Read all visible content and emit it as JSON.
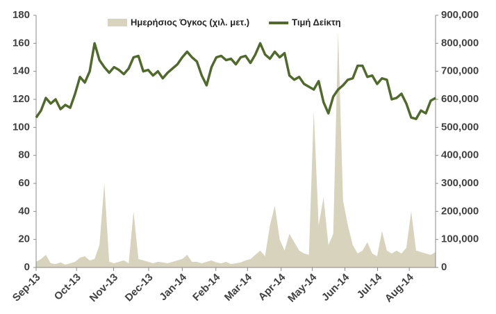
{
  "chart_data": {
    "type": "line-area",
    "x": [
      0,
      1,
      2,
      3,
      4,
      5,
      6,
      7,
      8,
      9,
      10,
      11,
      12,
      13,
      14,
      15,
      16,
      17,
      18,
      19,
      20,
      21,
      22,
      23,
      24,
      25,
      26,
      27,
      28,
      29,
      30,
      31,
      32,
      33,
      34,
      35,
      36,
      37,
      38,
      39,
      40,
      41,
      42,
      43,
      44,
      45,
      46,
      47,
      48,
      49,
      50,
      51,
      52,
      53,
      54,
      55,
      56,
      57,
      58,
      59,
      60,
      61,
      62,
      63,
      64,
      65,
      66,
      67,
      68,
      69,
      70,
      71,
      72,
      73,
      74,
      75,
      76,
      77,
      78,
      79,
      80,
      81,
      82
    ],
    "xlim": [
      0,
      82
    ],
    "xticks": [
      {
        "value": 0,
        "label": "Sep-13"
      },
      {
        "value": 8.3,
        "label": "Oct-13"
      },
      {
        "value": 15.9,
        "label": "Nov-13"
      },
      {
        "value": 23.1,
        "label": "Dec-13"
      },
      {
        "value": 30,
        "label": "Jan-14"
      },
      {
        "value": 36.9,
        "label": "Feb-14"
      },
      {
        "value": 43.4,
        "label": "Mar-14"
      },
      {
        "value": 50.3,
        "label": "Apr-14"
      },
      {
        "value": 56.7,
        "label": "May-14"
      },
      {
        "value": 63.4,
        "label": "Jun-14"
      },
      {
        "value": 70.1,
        "label": "Jul-14"
      },
      {
        "value": 76.6,
        "label": "Aug-14"
      }
    ],
    "ylim": [
      0,
      180
    ],
    "yticks": [
      0,
      20,
      40,
      60,
      80,
      100,
      120,
      140,
      160,
      180
    ],
    "y2lim": [
      0,
      900000
    ],
    "y2ticks": [
      0,
      {
        "value": 100000,
        "label": "100,000"
      },
      {
        "value": 200000,
        "label": "200,000"
      },
      {
        "value": 300000,
        "label": "300,000"
      },
      {
        "value": 400000,
        "label": "400,000"
      },
      {
        "value": 500000,
        "label": "500,000"
      },
      {
        "value": 600000,
        "label": "600,000"
      },
      {
        "value": 700000,
        "label": "700,000"
      },
      {
        "value": 800000,
        "label": "800,000"
      },
      {
        "value": 900000,
        "label": "900,000"
      }
    ],
    "legend": "top",
    "series": [
      {
        "name": "Ημερήσιος Όγκος (χιλ. μετ.)",
        "color": "#d8d3bd",
        "kind": "area",
        "axis": "y2",
        "values": [
          20000,
          30000,
          45000,
          15000,
          12000,
          18000,
          10000,
          15000,
          20000,
          35000,
          40000,
          25000,
          30000,
          80000,
          300000,
          20000,
          15000,
          20000,
          25000,
          15000,
          200000,
          30000,
          25000,
          20000,
          15000,
          20000,
          18000,
          15000,
          20000,
          25000,
          30000,
          45000,
          20000,
          20000,
          15000,
          20000,
          25000,
          18000,
          15000,
          20000,
          12000,
          15000,
          18000,
          25000,
          30000,
          45000,
          60000,
          40000,
          150000,
          220000,
          100000,
          60000,
          120000,
          90000,
          60000,
          50000,
          45000,
          560000,
          150000,
          250000,
          80000,
          120000,
          840000,
          240000,
          150000,
          80000,
          50000,
          60000,
          90000,
          50000,
          40000,
          130000,
          60000,
          50000,
          60000,
          50000,
          70000,
          200000,
          60000,
          55000,
          50000,
          45000,
          55000
        ]
      },
      {
        "name": "Τιμή Δείκτη",
        "color": "#4f6a2b",
        "kind": "line",
        "values": [
          107,
          112,
          121,
          117,
          120,
          113,
          116,
          114,
          124,
          136,
          132,
          140,
          160,
          148,
          143,
          139,
          143,
          141,
          138,
          142,
          150,
          151,
          140,
          141,
          137,
          140,
          135,
          139,
          142,
          145,
          150,
          154,
          150,
          147,
          137,
          130,
          143,
          150,
          151,
          148,
          149,
          145,
          150,
          151,
          146,
          152,
          160,
          152,
          149,
          154,
          150,
          153,
          137,
          134,
          136,
          131,
          129,
          127,
          133,
          118,
          110,
          122,
          127,
          130,
          134,
          135,
          144,
          144,
          136,
          137,
          131,
          135,
          134,
          120,
          121,
          124,
          117,
          107,
          106,
          112,
          110,
          119,
          121
        ]
      }
    ]
  }
}
